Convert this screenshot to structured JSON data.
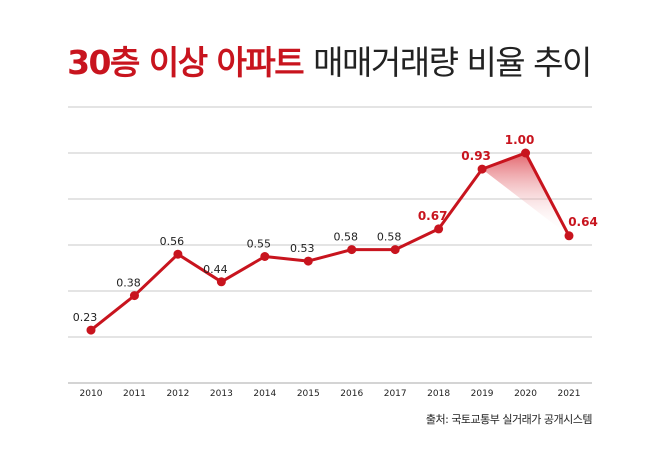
{
  "chart_data": {
    "type": "line",
    "title_highlight": "30층 이상 아파트",
    "title_rest": "매매거래량 비율 추이",
    "categories": [
      "2010",
      "2011",
      "2012",
      "2013",
      "2014",
      "2015",
      "2016",
      "2017",
      "2018",
      "2019",
      "2020",
      "2021"
    ],
    "values": [
      0.23,
      0.38,
      0.56,
      0.44,
      0.55,
      0.53,
      0.58,
      0.58,
      0.67,
      0.93,
      1.0,
      0.64
    ],
    "labels": [
      "0.23",
      "0.38",
      "0.56",
      "0.44",
      "0.55",
      "0.53",
      "0.58",
      "0.58",
      "0.67",
      "0.93",
      "1.00",
      "0.64"
    ],
    "highlight_from_index": 8,
    "ylim": [
      0,
      1.2
    ],
    "ygrid_step": 0.2,
    "grid": true,
    "xlabel": "",
    "ylabel": "",
    "source": "출처: 국토교통부 실거래가 공개시스템",
    "colors": {
      "line": "#c8141e",
      "label_normal": "#222222",
      "label_highlight": "#c8141e",
      "grid": "#c8c8c8"
    }
  }
}
